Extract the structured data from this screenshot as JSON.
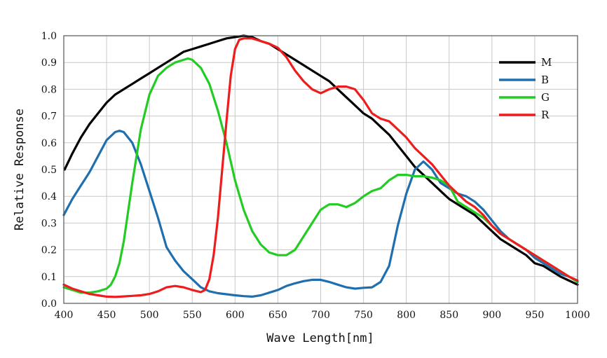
{
  "chart_data": {
    "type": "line",
    "title": "",
    "xlabel": "Wave Length[nm]",
    "ylabel": "Relative Response",
    "xlim": [
      400,
      1000
    ],
    "ylim": [
      0.0,
      1.0
    ],
    "xticks": [
      400,
      450,
      500,
      550,
      600,
      650,
      700,
      750,
      800,
      850,
      900,
      950,
      1000
    ],
    "yticks": [
      "0.0",
      "0.1",
      "0.2",
      "0.3",
      "0.4",
      "0.5",
      "0.6",
      "0.7",
      "0.8",
      "0.9",
      "1.0"
    ],
    "grid": true,
    "legend_position": "top-right",
    "series": [
      {
        "name": "M",
        "color": "#000000",
        "x": [
          401,
          410,
          420,
          430,
          440,
          450,
          460,
          470,
          480,
          490,
          500,
          510,
          520,
          530,
          540,
          550,
          560,
          570,
          580,
          590,
          600,
          610,
          620,
          630,
          640,
          650,
          660,
          670,
          680,
          690,
          700,
          710,
          720,
          730,
          740,
          750,
          760,
          770,
          780,
          790,
          800,
          810,
          820,
          830,
          840,
          850,
          860,
          870,
          880,
          890,
          900,
          910,
          920,
          930,
          940,
          950,
          960,
          970,
          980,
          990,
          1000
        ],
        "y": [
          0.5,
          0.56,
          0.62,
          0.67,
          0.71,
          0.75,
          0.78,
          0.8,
          0.82,
          0.84,
          0.86,
          0.88,
          0.9,
          0.92,
          0.94,
          0.95,
          0.96,
          0.97,
          0.98,
          0.99,
          0.995,
          1.0,
          0.995,
          0.98,
          0.97,
          0.95,
          0.93,
          0.91,
          0.89,
          0.87,
          0.85,
          0.83,
          0.8,
          0.77,
          0.74,
          0.71,
          0.69,
          0.66,
          0.63,
          0.59,
          0.55,
          0.51,
          0.48,
          0.45,
          0.42,
          0.39,
          0.37,
          0.35,
          0.33,
          0.3,
          0.27,
          0.24,
          0.22,
          0.2,
          0.18,
          0.15,
          0.14,
          0.12,
          0.1,
          0.085,
          0.07
        ]
      },
      {
        "name": "B",
        "color": "#1f6faf",
        "x": [
          400,
          410,
          420,
          430,
          440,
          450,
          460,
          465,
          470,
          480,
          490,
          500,
          510,
          520,
          530,
          540,
          550,
          560,
          570,
          580,
          590,
          600,
          610,
          620,
          630,
          640,
          650,
          660,
          670,
          680,
          690,
          700,
          710,
          720,
          730,
          740,
          750,
          760,
          770,
          780,
          790,
          800,
          810,
          820,
          830,
          840,
          850,
          860,
          870,
          880,
          890,
          900,
          910,
          920,
          930,
          940,
          950,
          960,
          970,
          980,
          990,
          1000
        ],
        "y": [
          0.33,
          0.39,
          0.44,
          0.49,
          0.55,
          0.61,
          0.64,
          0.645,
          0.64,
          0.6,
          0.52,
          0.42,
          0.32,
          0.21,
          0.16,
          0.12,
          0.09,
          0.06,
          0.045,
          0.038,
          0.034,
          0.03,
          0.027,
          0.025,
          0.03,
          0.04,
          0.05,
          0.065,
          0.075,
          0.083,
          0.088,
          0.088,
          0.08,
          0.07,
          0.06,
          0.055,
          0.058,
          0.06,
          0.08,
          0.14,
          0.29,
          0.41,
          0.5,
          0.53,
          0.5,
          0.45,
          0.43,
          0.41,
          0.4,
          0.38,
          0.35,
          0.31,
          0.27,
          0.24,
          0.22,
          0.2,
          0.17,
          0.15,
          0.13,
          0.11,
          0.1,
          0.08
        ]
      },
      {
        "name": "G",
        "color": "#22cc22",
        "x": [
          400,
          410,
          420,
          430,
          440,
          450,
          455,
          460,
          465,
          470,
          475,
          480,
          490,
          500,
          510,
          520,
          530,
          540,
          545,
          550,
          560,
          570,
          580,
          590,
          600,
          610,
          620,
          630,
          640,
          650,
          660,
          670,
          680,
          690,
          700,
          710,
          720,
          730,
          740,
          750,
          760,
          770,
          780,
          790,
          800,
          810,
          820,
          830,
          840,
          850,
          860,
          870,
          880,
          890,
          900,
          910,
          920,
          930,
          940,
          950,
          960,
          970,
          980,
          990,
          1000
        ],
        "y": [
          0.06,
          0.05,
          0.04,
          0.04,
          0.045,
          0.055,
          0.07,
          0.1,
          0.15,
          0.23,
          0.34,
          0.45,
          0.65,
          0.78,
          0.85,
          0.88,
          0.9,
          0.91,
          0.915,
          0.91,
          0.88,
          0.82,
          0.72,
          0.6,
          0.46,
          0.35,
          0.27,
          0.22,
          0.19,
          0.18,
          0.18,
          0.2,
          0.25,
          0.3,
          0.35,
          0.37,
          0.37,
          0.36,
          0.375,
          0.4,
          0.42,
          0.43,
          0.46,
          0.48,
          0.48,
          0.475,
          0.475,
          0.47,
          0.46,
          0.44,
          0.38,
          0.36,
          0.34,
          0.32,
          0.29,
          0.26,
          0.24,
          0.22,
          0.2,
          0.18,
          0.16,
          0.14,
          0.12,
          0.1,
          0.08
        ]
      },
      {
        "name": "R",
        "color": "#ee1c1c",
        "x": [
          400,
          410,
          420,
          430,
          440,
          450,
          460,
          470,
          480,
          490,
          500,
          510,
          520,
          530,
          540,
          550,
          560,
          565,
          570,
          575,
          580,
          585,
          590,
          595,
          600,
          605,
          610,
          620,
          630,
          640,
          650,
          660,
          670,
          680,
          690,
          700,
          710,
          720,
          730,
          740,
          750,
          760,
          770,
          780,
          790,
          800,
          810,
          820,
          830,
          840,
          850,
          860,
          870,
          880,
          890,
          900,
          910,
          920,
          930,
          940,
          950,
          960,
          970,
          980,
          990,
          1000
        ],
        "y": [
          0.07,
          0.055,
          0.045,
          0.035,
          0.03,
          0.025,
          0.024,
          0.026,
          0.028,
          0.03,
          0.035,
          0.045,
          0.06,
          0.065,
          0.06,
          0.05,
          0.042,
          0.05,
          0.09,
          0.18,
          0.32,
          0.5,
          0.68,
          0.85,
          0.95,
          0.985,
          0.99,
          0.99,
          0.98,
          0.97,
          0.955,
          0.92,
          0.87,
          0.83,
          0.8,
          0.785,
          0.8,
          0.81,
          0.81,
          0.8,
          0.76,
          0.71,
          0.69,
          0.68,
          0.65,
          0.62,
          0.58,
          0.55,
          0.52,
          0.48,
          0.44,
          0.41,
          0.38,
          0.36,
          0.33,
          0.29,
          0.26,
          0.24,
          0.22,
          0.2,
          0.18,
          0.16,
          0.14,
          0.12,
          0.1,
          0.085
        ]
      }
    ]
  }
}
